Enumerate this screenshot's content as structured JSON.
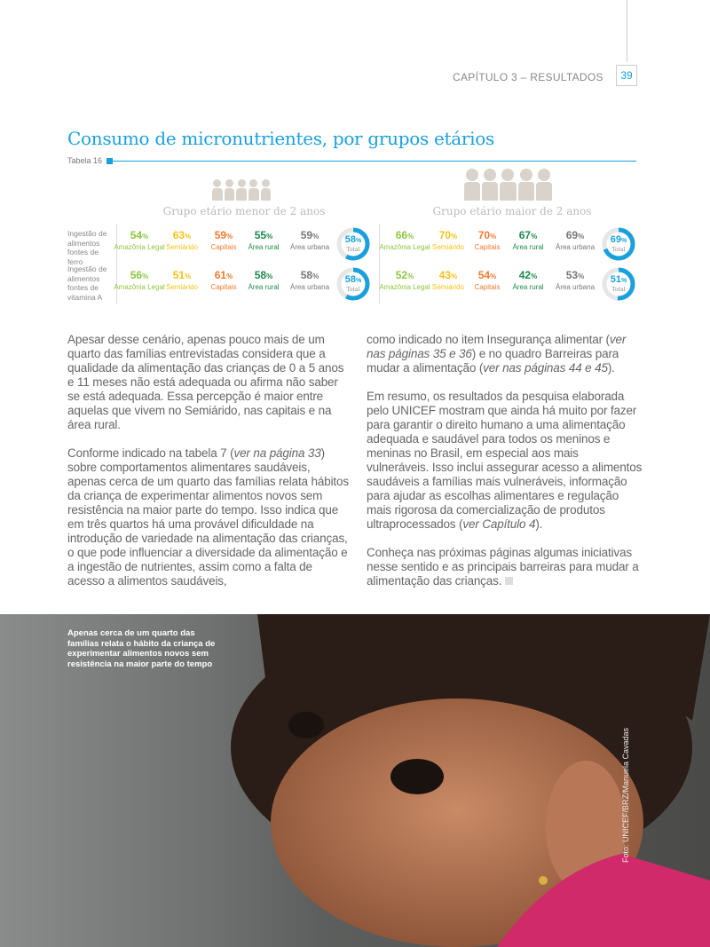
{
  "header": {
    "chapter": "CAPÍTULO 3 – RESULTADOS",
    "page": "39"
  },
  "title": "Consumo de micronutrientes, por grupos etários",
  "table_label": "Tabela 16",
  "colors": {
    "accent": "#1aa0dc",
    "amazonia": "#8dc63f",
    "semiarido": "#f5c21b",
    "capitais": "#f07a2e",
    "rural": "#1e8a4c",
    "urbana": "#777777"
  },
  "table": {
    "groups": [
      "Grupo etário menor de 2 anos",
      "Grupo etário maior de 2 anos"
    ],
    "rows": [
      "Ingestão de alimentos fontes de ferro",
      "Ingestão de alimentos fontes de vitamina A"
    ],
    "regions": [
      "Amazônia Legal",
      "Semiárido",
      "Capitais",
      "Área rural",
      "Área urbana"
    ],
    "total_label": "Total",
    "values": [
      [
        {
          "cells": [
            "54",
            "63",
            "59",
            "55",
            "59"
          ],
          "total": "58"
        },
        {
          "cells": [
            "66",
            "70",
            "70",
            "67",
            "69"
          ],
          "total": "69"
        }
      ],
      [
        {
          "cells": [
            "56",
            "51",
            "61",
            "58",
            "58"
          ],
          "total": "58"
        },
        {
          "cells": [
            "52",
            "43",
            "54",
            "42",
            "53"
          ],
          "total": "51"
        }
      ]
    ]
  },
  "body": {
    "p1": "Apesar desse cenário, apenas pouco mais de um quarto das famílias entrevistadas considera que a qualidade da alimentação das crianças de 0 a 5 anos e 11 meses não está adequada ou afirma não saber se está adequada. Essa percepção é maior entre aquelas que vivem no Semiárido, nas capitais e na área rural.",
    "p2a": "Conforme indicado na tabela 7 (",
    "p2b": "ver na página 33",
    "p2c": ") sobre comportamentos alimentares saudáveis, apenas cerca de um quarto das famílias relata hábitos da criança de experimentar alimentos novos sem resistência na maior parte do tempo. Isso indica que em três quartos há uma provável dificuldade na introdução de variedade na alimentação das crianças, o que pode influenciar a diversidade da alimentação e a ingestão de nutrientes, assim como a falta de acesso a alimentos saudáveis,",
    "p3a": "como indicado no item Insegurança alimentar (",
    "p3b": "ver nas páginas 35 e 36",
    "p3c": ") e no quadro Barreiras para mudar a alimentação (",
    "p3d": "ver nas páginas 44 e 45",
    "p3e": ").",
    "p4a": "Em resumo, os resultados da pesquisa elaborada pelo UNICEF mostram que ainda há muito por fazer para garantir o direito humano a uma alimentação adequada e saudável para todos os meninos e meninas no Brasil, em especial aos mais vulneráveis. Isso inclui assegurar acesso a alimentos saudáveis a famílias mais vulneráveis, informação para ajudar as escolhas alimentares e regulação mais rigorosa da comercialização de produtos ultraprocessados (",
    "p4b": "ver Capítulo 4",
    "p4c": ").",
    "p5": "Conheça nas próximas páginas algumas iniciativas nesse sentido e as principais barreiras para mudar a alimentação das crianças."
  },
  "photo": {
    "caption": "Apenas cerca de um quarto das famílias relata o hábito da criança de experimentar alimentos novos sem resistência na maior parte do tempo",
    "credit": "Foto: UNICEF/BRZ/Manuela Cavadas"
  }
}
